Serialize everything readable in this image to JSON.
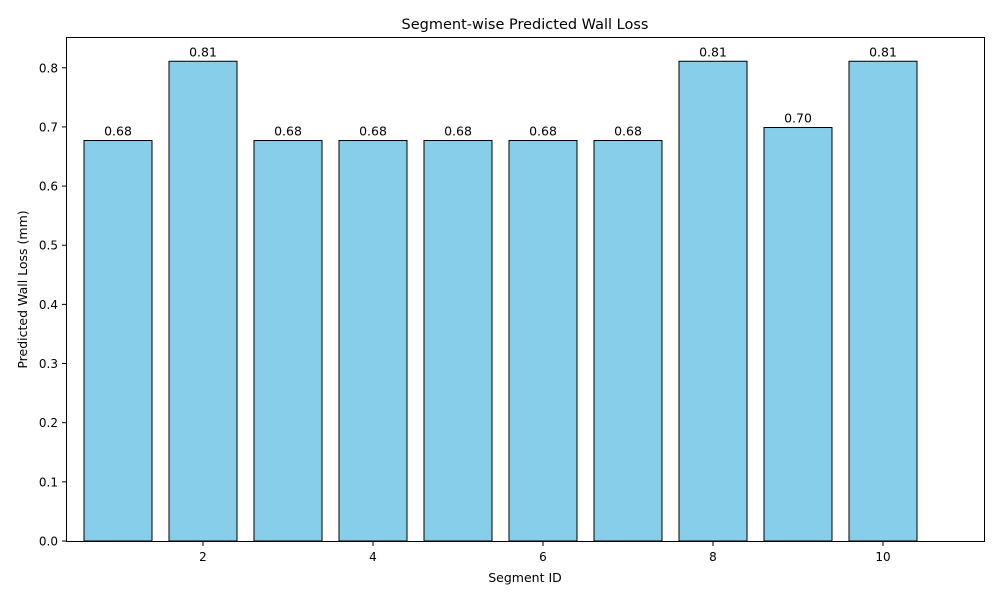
{
  "chart_data": {
    "type": "bar",
    "title": "Segment-wise Predicted Wall Loss",
    "xlabel": "Segment ID",
    "ylabel": "Predicted Wall Loss (mm)",
    "categories": [
      1,
      2,
      3,
      4,
      5,
      6,
      7,
      8,
      9,
      10
    ],
    "values": [
      0.677,
      0.811,
      0.677,
      0.677,
      0.677,
      0.677,
      0.677,
      0.811,
      0.699,
      0.811
    ],
    "data_labels": [
      "0.68",
      "0.81",
      "0.68",
      "0.68",
      "0.68",
      "0.68",
      "0.68",
      "0.81",
      "0.70",
      "0.81"
    ],
    "xlim": [
      0.4,
      11.2
    ],
    "ylim": [
      0,
      0.852
    ],
    "xticks": [
      2,
      4,
      6,
      8,
      10
    ],
    "xtick_labels": [
      "2",
      "4",
      "6",
      "8",
      "10"
    ],
    "yticks": [
      0.0,
      0.1,
      0.2,
      0.3,
      0.4,
      0.5,
      0.6,
      0.7,
      0.8
    ],
    "ytick_labels": [
      "0.0",
      "0.1",
      "0.2",
      "0.3",
      "0.4",
      "0.5",
      "0.6",
      "0.7",
      "0.8"
    ],
    "grid": false,
    "legend": "none",
    "bar_color": "#87CEEB",
    "bar_edge_color": "#000000"
  }
}
